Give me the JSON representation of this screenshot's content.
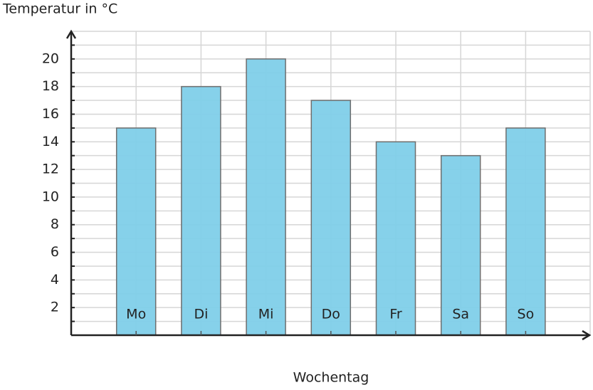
{
  "chart_data": {
    "type": "bar",
    "y_label": "Temperatur in °C",
    "x_label": "Wochentag",
    "categories": [
      "Mo",
      "Di",
      "Mi",
      "Do",
      "Fr",
      "Sa",
      "So"
    ],
    "values": [
      15,
      18,
      20,
      17,
      14,
      13,
      15
    ],
    "color": "#7fcfe9",
    "ylim": [
      0,
      22
    ],
    "yticks": [
      2,
      4,
      6,
      8,
      10,
      12,
      14,
      16,
      18,
      20
    ],
    "minor_yticks": [
      1,
      3,
      5,
      7,
      9,
      11,
      13,
      15,
      17,
      19,
      21
    ],
    "grid": true
  }
}
